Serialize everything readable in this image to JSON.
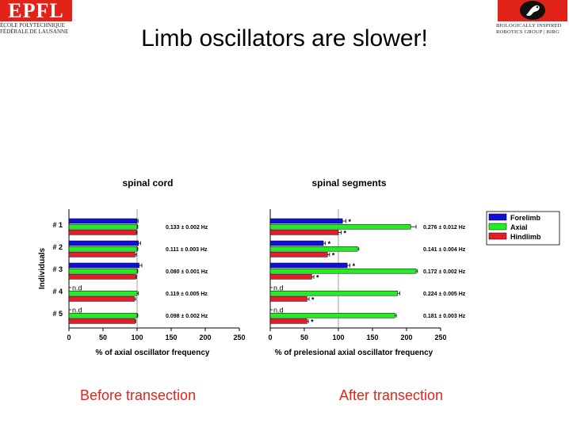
{
  "logos": {
    "left": {
      "mark": "EPFL",
      "line1": "ÉCOLE POLYTECHNIQUE",
      "line2": "FÉDÉRALE DE LAUSANNE"
    },
    "right": {
      "line1": "BIOLOGICALLY INSPIRED",
      "line2": "ROBOTICS GROUP | BIRG"
    }
  },
  "slide": {
    "title": "Limb oscillators are slower!",
    "caption_left": "Before transection",
    "caption_right": "After transection"
  },
  "colors": {
    "forelimb": "#1010d8",
    "axial": "#22ee22",
    "hindlimb": "#e51f2a",
    "caption": "#e2231a"
  },
  "chart_data": [
    {
      "type": "bar",
      "orientation": "horizontal",
      "title": "spinal cord",
      "xlabel": "% of axial oscillator frequency",
      "ylabel": "Individuals",
      "xlim": [
        0,
        250
      ],
      "xticks": [
        "0",
        "50",
        "100",
        "150",
        "200",
        "250"
      ],
      "reference_line": 100,
      "categories": [
        "# 1",
        "# 2",
        "# 3",
        "# 4",
        "# 5"
      ],
      "series": [
        {
          "name": "Forelimb",
          "color": "#1010d8",
          "values": [
            100,
            102,
            103,
            null,
            null
          ],
          "errors": [
            1.5,
            3,
            4,
            0,
            0
          ],
          "labels": [
            "",
            "",
            "",
            "n.d",
            "n.d"
          ],
          "stars": [
            false,
            false,
            false,
            false,
            false
          ]
        },
        {
          "name": "Axial",
          "color": "#22ee22",
          "values": [
            100,
            100,
            100,
            100,
            100
          ],
          "errors": [
            1,
            1,
            1,
            2,
            1
          ],
          "labels": [
            "",
            "",
            "",
            "",
            ""
          ],
          "stars": [
            false,
            false,
            false,
            false,
            false
          ]
        },
        {
          "name": "Hindlimb",
          "color": "#e51f2a",
          "values": [
            99,
            97,
            98,
            96,
            97
          ],
          "errors": [
            1,
            2,
            1,
            2,
            1
          ],
          "labels": [
            "",
            "",
            "",
            "",
            ""
          ],
          "stars": [
            false,
            false,
            false,
            false,
            false
          ]
        }
      ],
      "row_annotations": [
        "0.133 ± 0.002 Hz",
        "0.111 ± 0.003 Hz",
        "0.080 ± 0.001 Hz",
        "0.119 ± 0.005 Hz",
        "0.098 ± 0.002 Hz"
      ]
    },
    {
      "type": "bar",
      "orientation": "horizontal",
      "title": "spinal segments",
      "xlabel": "% of prelesional axial oscillator frequency",
      "xlim": [
        0,
        250
      ],
      "xticks": [
        "0",
        "50",
        "100",
        "150",
        "200",
        "250"
      ],
      "reference_line": 100,
      "categories": [
        "# 1",
        "# 2",
        "# 3",
        "# 4",
        "# 5"
      ],
      "legend": {
        "position": "right",
        "entries": [
          "Forelimb",
          "Axial",
          "Hindlimb"
        ]
      },
      "series": [
        {
          "name": "Forelimb",
          "color": "#1010d8",
          "values": [
            106,
            78,
            113,
            null,
            null
          ],
          "errors": [
            5,
            3,
            4,
            0,
            0
          ],
          "labels": [
            "",
            "",
            "",
            "n.d",
            "n.d"
          ],
          "stars": [
            true,
            true,
            true,
            false,
            false
          ]
        },
        {
          "name": "Axial",
          "color": "#22ee22",
          "values": [
            206,
            128,
            214,
            187,
            183
          ],
          "errors": [
            8,
            2,
            2,
            3,
            2
          ],
          "labels": [
            "",
            "",
            "",
            "",
            ""
          ],
          "stars": [
            false,
            false,
            false,
            false,
            false
          ]
        },
        {
          "name": "Hindlimb",
          "color": "#e51f2a",
          "values": [
            100,
            84,
            61,
            54,
            54
          ],
          "errors": [
            4,
            3,
            3,
            3,
            2
          ],
          "labels": [
            "",
            "",
            "",
            "",
            ""
          ],
          "stars": [
            true,
            true,
            true,
            true,
            true
          ]
        }
      ],
      "row_annotations": [
        "0.276 ± 0.012 Hz",
        "0.141 ± 0.004 Hz",
        "0.172 ± 0.002 Hz",
        "0.224 ± 0.005 Hz",
        "0.181 ± 0.003 Hz"
      ]
    }
  ]
}
